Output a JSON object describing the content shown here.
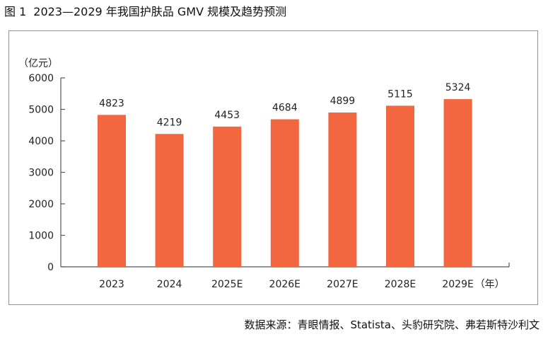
{
  "figure": {
    "label": "图 1",
    "title": "2023—2029 年我国护肤品 GMV 规模及趋势预测"
  },
  "source": "数据来源：青眼情报、Statista、头豹研究院、弗若斯特沙利文",
  "colors": {
    "bar": "#f26640",
    "axis": "#555555",
    "frame": "#8f8f8f"
  },
  "chart_data": {
    "type": "bar",
    "title": "2023—2029 年我国护肤品 GMV 规模及趋势预测",
    "xlabel": "（年）",
    "ylabel": "（亿元）",
    "categories": [
      "2023",
      "2024",
      "2025E",
      "2026E",
      "2027E",
      "2028E",
      "2029E"
    ],
    "values": [
      4823,
      4219,
      4453,
      4684,
      4899,
      5115,
      5324
    ],
    "data_labels": [
      "4823",
      "4219",
      "4453",
      "4684",
      "4899",
      "5115",
      "5324"
    ],
    "y_ticks": [
      0,
      1000,
      2000,
      3000,
      4000,
      5000,
      6000
    ],
    "ylim": [
      0,
      6000
    ],
    "grid": false,
    "legend": "none"
  }
}
